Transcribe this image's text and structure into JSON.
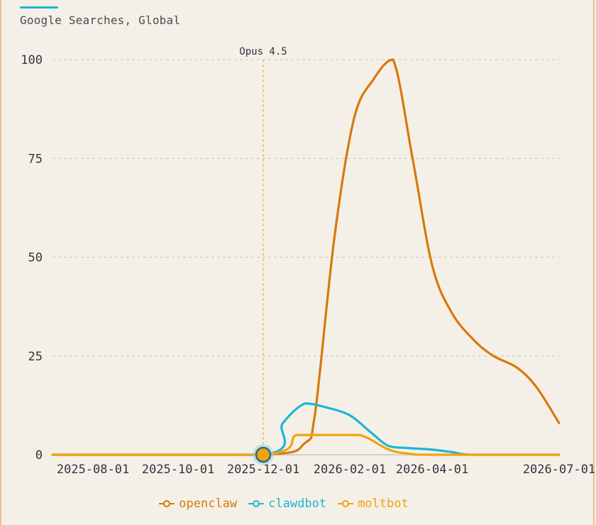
{
  "header": {
    "subtitle": "Google Searches, Global",
    "accent_color": "#1cb6d6"
  },
  "chart_data": {
    "type": "line",
    "subtitle": "Google Searches, Global",
    "x_type": "date",
    "xlim": [
      "2025-07-03",
      "2026-07-01"
    ],
    "ylim": [
      0,
      100
    ],
    "y_ticks": [
      0,
      25,
      50,
      75,
      100
    ],
    "x_ticks": [
      "2025-08-01",
      "2025-10-01",
      "2025-12-01",
      "2026-02-01",
      "2026-04-01",
      "2026-07-01"
    ],
    "grid": "horizontal dashed",
    "legend_position": "bottom-center",
    "annotations": [
      {
        "label": "Opus 4.5",
        "x": "2025-12-01",
        "style": "vertical dashed line"
      }
    ],
    "highlight_point": {
      "x": "2025-12-01",
      "y": 0
    },
    "series": [
      {
        "name": "openclaw",
        "color": "#d9780b",
        "x": [
          "2025-07-03",
          "2025-12-01",
          "2025-12-31",
          "2026-01-07",
          "2026-01-21",
          "2026-02-04",
          "2026-02-18",
          "2026-03-04",
          "2026-03-18",
          "2026-04-01",
          "2026-04-15",
          "2026-05-01",
          "2026-05-15",
          "2026-06-01",
          "2026-06-15",
          "2026-07-01"
        ],
        "values": [
          0,
          0,
          3,
          10,
          55,
          85,
          95,
          100,
          75,
          48,
          36,
          29,
          25,
          22,
          17,
          8
        ]
      },
      {
        "name": "clawdbot",
        "color": "#1cb6d6",
        "x": [
          "2025-07-03",
          "2025-12-01",
          "2025-12-15",
          "2025-12-31",
          "2026-01-15",
          "2026-02-01",
          "2026-02-15",
          "2026-03-01",
          "2026-03-15",
          "2026-04-01",
          "2026-04-15",
          "2026-05-01",
          "2026-07-01"
        ],
        "values": [
          0,
          0,
          8,
          13,
          12,
          10,
          6,
          2.2,
          1.7,
          1.3,
          0.7,
          0,
          0
        ]
      },
      {
        "name": "moltbot",
        "color": "#f0a30f",
        "x": [
          "2025-07-03",
          "2025-12-01",
          "2025-12-25",
          "2026-01-15",
          "2026-02-08",
          "2026-03-01",
          "2026-03-15",
          "2026-04-01",
          "2026-07-01"
        ],
        "values": [
          0,
          0,
          5,
          5,
          5,
          1.3,
          0.3,
          0,
          0
        ]
      }
    ]
  }
}
